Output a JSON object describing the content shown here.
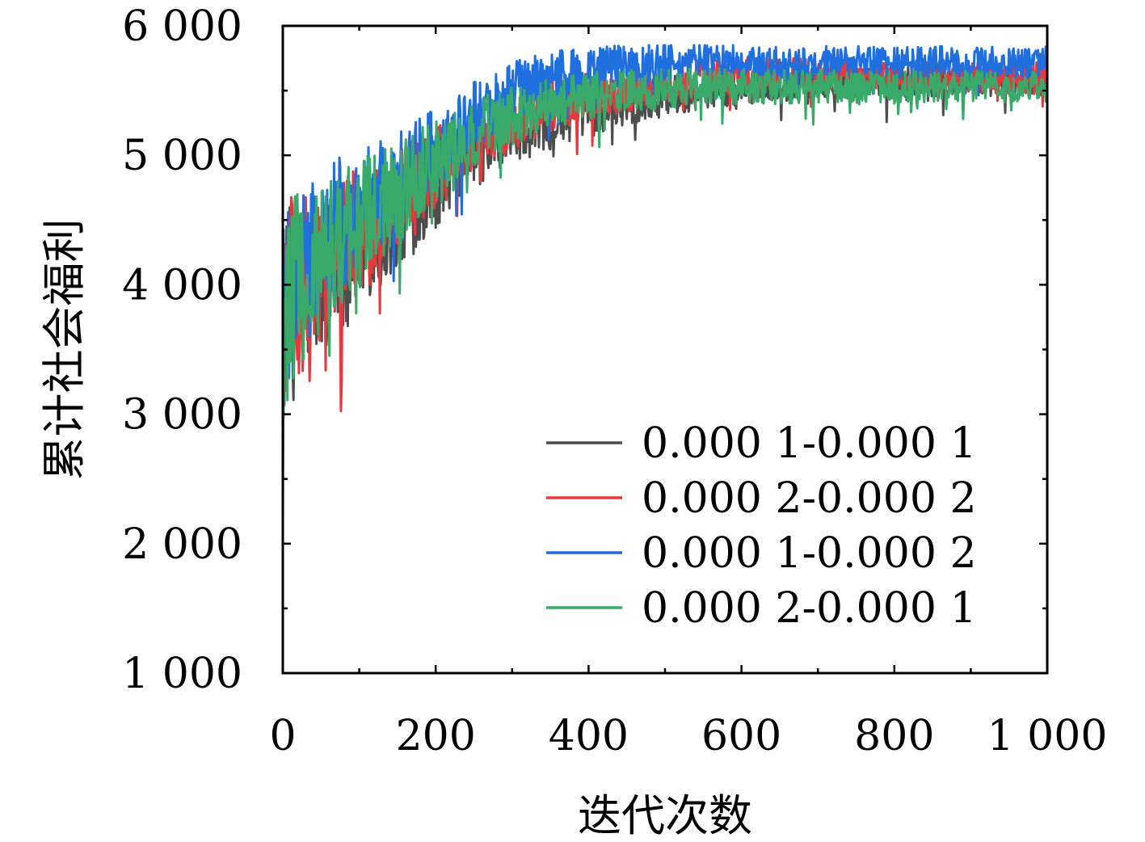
{
  "chart_data": {
    "type": "line",
    "title": "",
    "xlabel": "迭代次数",
    "ylabel": "累计社会福利",
    "xlim": [
      0,
      1000
    ],
    "ylim": [
      1000,
      6000
    ],
    "x_ticks": [
      0,
      200,
      400,
      600,
      800,
      1000
    ],
    "y_ticks": [
      1000,
      2000,
      3000,
      4000,
      5000,
      6000
    ],
    "x_tick_labels": [
      "0",
      "200",
      "400",
      "600",
      "800",
      "1 000"
    ],
    "y_tick_labels": [
      "1 000",
      "2 000",
      "3 000",
      "4 000",
      "5 000",
      "6 000"
    ],
    "grid": false,
    "legend_position": "bottom-right",
    "x": [
      0,
      10,
      25,
      50,
      75,
      100,
      125,
      150,
      175,
      200,
      225,
      250,
      275,
      300,
      325,
      350,
      375,
      400,
      425,
      450,
      475,
      500,
      550,
      600,
      650,
      700,
      750,
      800,
      850,
      900,
      950,
      1000
    ],
    "series": [
      {
        "name": "0.000 1-0.000 1",
        "color": "#4d4d4d",
        "values": [
          3600,
          3900,
          3950,
          4050,
          4200,
          4300,
          4350,
          4500,
          4650,
          4750,
          4900,
          5000,
          5100,
          5150,
          5200,
          5250,
          5300,
          5350,
          5380,
          5400,
          5430,
          5450,
          5500,
          5530,
          5550,
          5560,
          5570,
          5575,
          5580,
          5580,
          5580,
          5580
        ]
      },
      {
        "name": "0.000 2-0.000 2",
        "color": "#e8383d",
        "values": [
          3650,
          3950,
          4000,
          4100,
          4300,
          4450,
          4550,
          4650,
          4800,
          4900,
          5000,
          5100,
          5200,
          5250,
          5300,
          5380,
          5420,
          5450,
          5480,
          5500,
          5520,
          5550,
          5600,
          5620,
          5620,
          5610,
          5610,
          5610,
          5610,
          5600,
          5600,
          5600
        ]
      },
      {
        "name": "0.000 1-0.000 2",
        "color": "#1f6fde",
        "values": [
          3700,
          4000,
          4100,
          4250,
          4450,
          4600,
          4700,
          4850,
          4950,
          5050,
          5150,
          5300,
          5400,
          5500,
          5550,
          5600,
          5630,
          5660,
          5680,
          5690,
          5700,
          5710,
          5720,
          5720,
          5720,
          5720,
          5720,
          5720,
          5720,
          5720,
          5720,
          5720
        ]
      },
      {
        "name": "0.000 2-0.000 1",
        "color": "#3aaa6a",
        "values": [
          3650,
          3950,
          4050,
          4150,
          4350,
          4500,
          4600,
          4700,
          4850,
          4950,
          5050,
          5150,
          5250,
          5300,
          5350,
          5400,
          5430,
          5460,
          5480,
          5500,
          5510,
          5520,
          5530,
          5530,
          5530,
          5530,
          5530,
          5530,
          5530,
          5530,
          5530,
          5530
        ]
      }
    ]
  }
}
